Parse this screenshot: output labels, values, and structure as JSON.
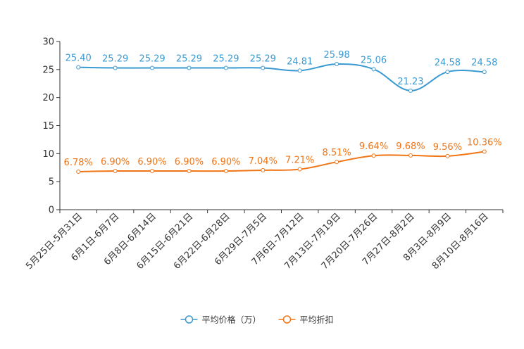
{
  "chart_data": {
    "type": "line",
    "title": "",
    "xlabel": "",
    "ylabel": "",
    "ylim": [
      0,
      30
    ],
    "yticks": [
      0,
      5,
      10,
      15,
      20,
      25,
      30
    ],
    "grid": false,
    "legend_position": "bottom",
    "categories": [
      "5月25日-5月31日",
      "6月1日-6月7日",
      "6月8日-6月14日",
      "6月15日-6月21日",
      "6月22日-6月28日",
      "6月29日-7月5日",
      "7月6日-7月12日",
      "7月13日-7月19日",
      "7月20日-7月26日",
      "7月27日-8月2日",
      "8月3日-8月9日",
      "8月10日-8月16日"
    ],
    "series": [
      {
        "name": "平均价格（万）",
        "color": "#3a9ad2",
        "values": [
          25.4,
          25.29,
          25.29,
          25.29,
          25.29,
          25.29,
          24.81,
          25.98,
          25.06,
          21.23,
          24.58,
          24.58
        ],
        "labels": [
          "25.40",
          "25.29",
          "25.29",
          "25.29",
          "25.29",
          "25.29",
          "24.81",
          "25.98",
          "25.06",
          "21.23",
          "24.58",
          "24.58"
        ]
      },
      {
        "name": "平均折扣",
        "color": "#f07516",
        "values": [
          6.78,
          6.9,
          6.9,
          6.9,
          6.9,
          7.04,
          7.21,
          8.51,
          9.64,
          9.68,
          9.56,
          10.36
        ],
        "labels": [
          "6.78%",
          "6.90%",
          "6.90%",
          "6.90%",
          "6.90%",
          "7.04%",
          "7.21%",
          "8.51%",
          "9.64%",
          "9.68%",
          "9.56%",
          "10.36%"
        ]
      }
    ]
  }
}
